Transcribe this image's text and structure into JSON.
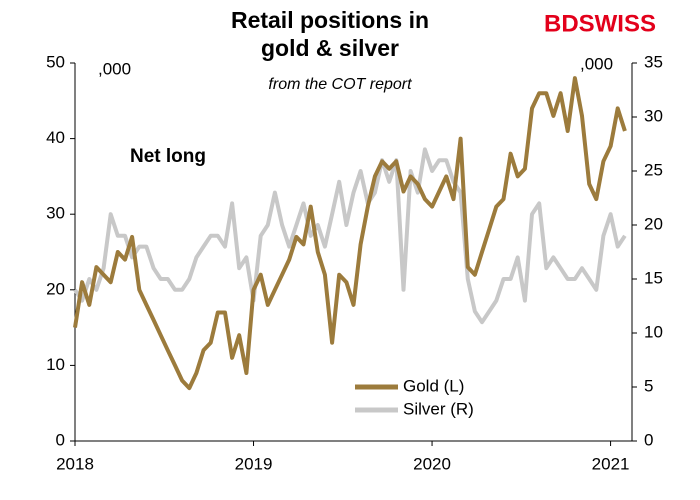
{
  "chart_data": {
    "type": "line",
    "title": [
      "Retail positions in",
      "gold & silver"
    ],
    "subtitle": "from the COT report",
    "brand": "BDSWISS",
    "annotations": [
      ",000",
      ",000",
      "Net long"
    ],
    "x": [
      2018.0,
      2018.04,
      2018.08,
      2018.12,
      2018.16,
      2018.2,
      2018.24,
      2018.28,
      2018.32,
      2018.36,
      2018.4,
      2018.44,
      2018.48,
      2018.52,
      2018.56,
      2018.6,
      2018.64,
      2018.68,
      2018.72,
      2018.76,
      2018.8,
      2018.84,
      2018.88,
      2018.92,
      2018.96,
      2019.0,
      2019.04,
      2019.08,
      2019.12,
      2019.16,
      2019.2,
      2019.24,
      2019.28,
      2019.32,
      2019.36,
      2019.4,
      2019.44,
      2019.48,
      2019.52,
      2019.56,
      2019.6,
      2019.64,
      2019.68,
      2019.72,
      2019.76,
      2019.8,
      2019.84,
      2019.88,
      2019.92,
      2019.96,
      2020.0,
      2020.04,
      2020.08,
      2020.12,
      2020.16,
      2020.2,
      2020.24,
      2020.28,
      2020.32,
      2020.36,
      2020.4,
      2020.44,
      2020.48,
      2020.52,
      2020.56,
      2020.6,
      2020.64,
      2020.68,
      2020.72,
      2020.76,
      2020.8,
      2020.84,
      2020.88,
      2020.92,
      2020.96,
      2021.0,
      2021.04,
      2021.08
    ],
    "series": [
      {
        "name": "Gold (L)",
        "color": "#9c7b3c",
        "axis": "y",
        "values": [
          15,
          21,
          18,
          23,
          22,
          21,
          25,
          24,
          27,
          20,
          18,
          16,
          14,
          12,
          10,
          8,
          7,
          9,
          12,
          13,
          17,
          17,
          11,
          14,
          9,
          20,
          22,
          18,
          20,
          22,
          24,
          27,
          26,
          31,
          25,
          22,
          13,
          22,
          21,
          18,
          26,
          31,
          35,
          37,
          36,
          37,
          33,
          35,
          34,
          32,
          31,
          33,
          35,
          32,
          40,
          23,
          22,
          25,
          28,
          31,
          32,
          38,
          35,
          36,
          44,
          46,
          46,
          43,
          46,
          41,
          48,
          43,
          34,
          32,
          37,
          39,
          44,
          41
        ]
      },
      {
        "name": "Silver (R)",
        "color": "#c8c8c8",
        "axis": "y2",
        "values": [
          14,
          13,
          15,
          14,
          16,
          21,
          19,
          19,
          17,
          18,
          18,
          16,
          15,
          15,
          14,
          14,
          15,
          17,
          18,
          19,
          19,
          18,
          22,
          16,
          17,
          13,
          19,
          20,
          23,
          20,
          18,
          20,
          22,
          19,
          20,
          18,
          21,
          24,
          20,
          23,
          25,
          22,
          23,
          26,
          24,
          26,
          14,
          25,
          23,
          27,
          25,
          26,
          26,
          24,
          23,
          15,
          12,
          11,
          12,
          13,
          15,
          15,
          17,
          13,
          21,
          22,
          16,
          17,
          16,
          15,
          15,
          16,
          15,
          14,
          19,
          21,
          18,
          19
        ]
      }
    ],
    "xlim": [
      2018,
      2021.12
    ],
    "xticks": [
      2018,
      2019,
      2020,
      2021
    ],
    "ylim": [
      0,
      50
    ],
    "yticks": [
      0,
      10,
      20,
      30,
      40,
      50
    ],
    "y2lim": [
      0,
      35
    ],
    "y2ticks": [
      0,
      5,
      10,
      15,
      20,
      25,
      30,
      35
    ]
  }
}
